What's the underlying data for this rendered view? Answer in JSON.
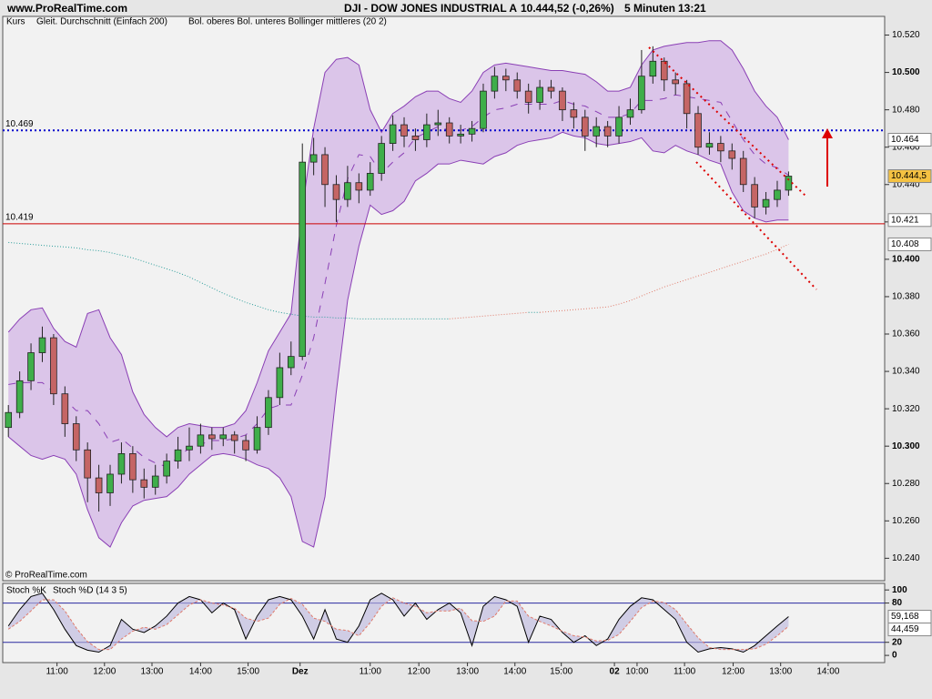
{
  "header": {
    "site": "www.ProRealTime.com",
    "title": "DJI - DOW JONES INDUSTRIAL A",
    "quote": "10.444,52 (-0,26%)",
    "interval": "5 Minuten",
    "time": "13:21"
  },
  "copyright": "© ProRealTime.com",
  "chart_data": [
    {
      "type": "candlestick",
      "xlim": [
        0,
        78
      ],
      "ylim": [
        10228,
        10530
      ],
      "yticks": [
        {
          "value": 10520,
          "label": "10.520"
        },
        {
          "value": 10500,
          "label": "10.500"
        },
        {
          "value": 10480,
          "label": "10.480"
        },
        {
          "value": 10460,
          "label": "10.460"
        },
        {
          "value": 10440,
          "label": "10.440"
        },
        {
          "value": 10420,
          "label": "10.420"
        },
        {
          "value": 10400,
          "label": "10.400"
        },
        {
          "value": 10380,
          "label": "10.380"
        },
        {
          "value": 10360,
          "label": "10.360"
        },
        {
          "value": 10340,
          "label": "10.340"
        },
        {
          "value": 10320,
          "label": "10.320"
        },
        {
          "value": 10300,
          "label": "10.300"
        },
        {
          "value": 10280,
          "label": "10.280"
        },
        {
          "value": 10260,
          "label": "10.260"
        },
        {
          "value": 10240,
          "label": "10.240"
        }
      ],
      "candles": {
        "name": "Kurs",
        "up_color": "#3fae4a",
        "down_color": "#c56565",
        "last_label": "10.444,5",
        "ohlc": [
          [
            10310,
            10322,
            10305,
            10318
          ],
          [
            10318,
            10340,
            10315,
            10335
          ],
          [
            10335,
            10355,
            10330,
            10350
          ],
          [
            10350,
            10364,
            10345,
            10358
          ],
          [
            10358,
            10360,
            10322,
            10328
          ],
          [
            10328,
            10332,
            10305,
            10312
          ],
          [
            10312,
            10316,
            10292,
            10298
          ],
          [
            10298,
            10302,
            10270,
            10283
          ],
          [
            10283,
            10290,
            10265,
            10275
          ],
          [
            10275,
            10290,
            10268,
            10285
          ],
          [
            10285,
            10302,
            10280,
            10296
          ],
          [
            10296,
            10300,
            10275,
            10282
          ],
          [
            10282,
            10288,
            10272,
            10278
          ],
          [
            10278,
            10290,
            10274,
            10284
          ],
          [
            10284,
            10296,
            10280,
            10292
          ],
          [
            10292,
            10305,
            10288,
            10298
          ],
          [
            10298,
            10310,
            10292,
            10300
          ],
          [
            10300,
            10312,
            10296,
            10306
          ],
          [
            10306,
            10310,
            10298,
            10304
          ],
          [
            10304,
            10310,
            10300,
            10306
          ],
          [
            10306,
            10308,
            10296,
            10303
          ],
          [
            10303,
            10306,
            10292,
            10298
          ],
          [
            10298,
            10316,
            10296,
            10310
          ],
          [
            10310,
            10330,
            10306,
            10326
          ],
          [
            10326,
            10350,
            10322,
            10342
          ],
          [
            10342,
            10356,
            10338,
            10348
          ],
          [
            10348,
            10462,
            10346,
            10452
          ],
          [
            10452,
            10465,
            10445,
            10456
          ],
          [
            10456,
            10460,
            10428,
            10440
          ],
          [
            10440,
            10445,
            10420,
            10432
          ],
          [
            10432,
            10450,
            10428,
            10441
          ],
          [
            10441,
            10446,
            10430,
            10437
          ],
          [
            10437,
            10452,
            10434,
            10446
          ],
          [
            10446,
            10466,
            10442,
            10462
          ],
          [
            10462,
            10477,
            10458,
            10472
          ],
          [
            10472,
            10476,
            10460,
            10466
          ],
          [
            10466,
            10470,
            10458,
            10464
          ],
          [
            10464,
            10478,
            10460,
            10472
          ],
          [
            10472,
            10480,
            10466,
            10473
          ],
          [
            10473,
            10476,
            10462,
            10466
          ],
          [
            10466,
            10472,
            10462,
            10467
          ],
          [
            10467,
            10474,
            10463,
            10470
          ],
          [
            10470,
            10494,
            10468,
            10490
          ],
          [
            10490,
            10503,
            10486,
            10498
          ],
          [
            10498,
            10502,
            10490,
            10496
          ],
          [
            10496,
            10500,
            10486,
            10490
          ],
          [
            10490,
            10494,
            10478,
            10484
          ],
          [
            10484,
            10496,
            10480,
            10492
          ],
          [
            10492,
            10496,
            10486,
            10490
          ],
          [
            10490,
            10492,
            10474,
            10480
          ],
          [
            10480,
            10484,
            10470,
            10476
          ],
          [
            10476,
            10480,
            10458,
            10466
          ],
          [
            10466,
            10476,
            10460,
            10471
          ],
          [
            10471,
            10474,
            10460,
            10466
          ],
          [
            10466,
            10482,
            10462,
            10476
          ],
          [
            10476,
            10486,
            10472,
            10480
          ],
          [
            10480,
            10512,
            10478,
            10498
          ],
          [
            10498,
            10514,
            10494,
            10506
          ],
          [
            10506,
            10508,
            10490,
            10496
          ],
          [
            10496,
            10500,
            10488,
            10494
          ],
          [
            10494,
            10496,
            10470,
            10478
          ],
          [
            10478,
            10482,
            10456,
            10460
          ],
          [
            10460,
            10468,
            10456,
            10462
          ],
          [
            10462,
            10466,
            10452,
            10458
          ],
          [
            10458,
            10462,
            10448,
            10454
          ],
          [
            10454,
            10458,
            10436,
            10440
          ],
          [
            10440,
            10444,
            10422,
            10428
          ],
          [
            10428,
            10436,
            10424,
            10432
          ],
          [
            10432,
            10442,
            10428,
            10437
          ],
          [
            10437,
            10447,
            10434,
            10444.5
          ]
        ]
      },
      "moving_average": {
        "name": "Gleit. Durchschnitt (Einfach 200)",
        "falling_color": "#2a9d9a",
        "rising_color": "#e07a6a",
        "last_label": "10.408",
        "values": [
          10409,
          10408.5,
          10408,
          10407.5,
          10407,
          10406.6,
          10406.1,
          10405.1,
          10404.6,
          10403.6,
          10402.2,
          10400.7,
          10398.8,
          10396.8,
          10394.9,
          10392.9,
          10390.5,
          10387.6,
          10384.7,
          10381.8,
          10379.3,
          10376.9,
          10375,
          10373,
          10371.6,
          10370.6,
          10369.6,
          10369.1,
          10369.1,
          10368.6,
          10368.6,
          10368.1,
          10368.1,
          10368.1,
          10368.1,
          10368.1,
          10368.1,
          10368.1,
          10368.1,
          10368.1,
          10368.6,
          10369.1,
          10369.6,
          10370.1,
          10370.6,
          10371.1,
          10371.6,
          10371.6,
          10372.1,
          10372.5,
          10373,
          10373.5,
          10374,
          10374.5,
          10376,
          10377.9,
          10380.4,
          10382.8,
          10385.2,
          10387.2,
          10389.1,
          10391.1,
          10393,
          10395,
          10397,
          10398.9,
          10400.9,
          10402.8,
          10405.3,
          10408
        ]
      },
      "bollinger": {
        "name": "Bol. oberes Bol. unteres Bollinger mittleres (20 2)",
        "color": "#8a3fb5",
        "fill": "#d7bde8",
        "upper_last_label": "10.464",
        "lower_last_label": "10.421",
        "upper": [
          10361,
          10368,
          10373,
          10374,
          10363,
          10356,
          10353,
          10371,
          10373,
          10358,
          10349,
          10329,
          10317,
          10310,
          10305,
          10310,
          10312,
          10311,
          10310,
          10310,
          10312,
          10319,
          10334,
          10351,
          10361,
          10371,
          10427,
          10470,
          10500,
          10507,
          10508,
          10504,
          10480,
          10468,
          10478,
          10482,
          10487,
          10490,
          10490,
          10486,
          10484,
          10490,
          10500,
          10504,
          10505,
          10504,
          10503,
          10502,
          10501,
          10501,
          10500,
          10499,
          10495,
          10490,
          10490,
          10492,
          10504,
          10512,
          10514,
          10515,
          10516,
          10516,
          10517,
          10517,
          10512,
          10502,
          10490,
          10482,
          10476,
          10464
        ],
        "lower": [
          10305,
          10300,
          10295,
          10293,
          10295,
          10293,
          10285,
          10266,
          10251,
          10246,
          10259,
          10268,
          10271,
          10272,
          10273,
          10278,
          10285,
          10290,
          10295,
          10296,
          10295,
          10293,
          10290,
          10288,
          10283,
          10273,
          10249,
          10246,
          10273,
          10329,
          10378,
          10407,
          10429,
          10424,
          10426,
          10431,
          10442,
          10446,
          10451,
          10451,
          10453,
          10452,
          10451,
          10455,
          10457,
          10461,
          10463,
          10464,
          10465,
          10468,
          10466,
          10465,
          10462,
          10461,
          10462,
          10463,
          10465,
          10458,
          10457,
          10461,
          10458,
          10456,
          10453,
          10451,
          10436,
          10426,
          10422,
          10420,
          10421,
          10421
        ],
        "middle": [
          10333,
          10334,
          10334,
          10334,
          10329,
          10325,
          10319,
          10319,
          10312,
          10302,
          10304,
          10299,
          10294,
          10291,
          10289,
          10294,
          10299,
          10301,
          10303,
          10303,
          10304,
          10306,
          10312,
          10320,
          10322,
          10322,
          10338,
          10358,
          10387,
          10418,
          10443,
          10456,
          10455,
          10446,
          10452,
          10457,
          10465,
          10468,
          10471,
          10469,
          10469,
          10471,
          10476,
          10480,
          10481,
          10483,
          10483,
          10483,
          10483,
          10485,
          10483,
          10482,
          10479,
          10476,
          10476,
          10478,
          10485,
          10485,
          10486,
          10488,
          10487,
          10486,
          10485,
          10484,
          10474,
          10464,
          10456,
          10451,
          10449,
          10445
        ]
      },
      "levels": [
        {
          "value": 10469,
          "label": "10.469",
          "color": "#0000cc",
          "dash": "2,3"
        },
        {
          "value": 10419,
          "label": "10.419",
          "color": "#cc0000",
          "dash": "none"
        }
      ]
    },
    {
      "type": "stochastic",
      "xlim": [
        0,
        78
      ],
      "ylim": [
        -11,
        110
      ],
      "yticks": [
        100,
        80,
        20,
        0
      ],
      "levels": [
        80,
        20
      ],
      "level_color": "#2a2aa0",
      "xticks": [
        {
          "value": 4.8,
          "label": "11:00"
        },
        {
          "value": 9.0,
          "label": "12:00"
        },
        {
          "value": 13.2,
          "label": "13:00"
        },
        {
          "value": 17.5,
          "label": "14:00"
        },
        {
          "value": 21.7,
          "label": "15:00"
        },
        {
          "value": 26.3,
          "label": "Dez"
        },
        {
          "value": 32.5,
          "label": "11:00"
        },
        {
          "value": 36.8,
          "label": "12:00"
        },
        {
          "value": 41.1,
          "label": "13:00"
        },
        {
          "value": 45.3,
          "label": "14:00"
        },
        {
          "value": 49.4,
          "label": "15:00"
        },
        {
          "value": 54.1,
          "label": "02"
        },
        {
          "value": 56.1,
          "label": "10:00"
        },
        {
          "value": 60.3,
          "label": "11:00"
        },
        {
          "value": 64.6,
          "label": "12:00"
        },
        {
          "value": 68.8,
          "label": "13:00"
        },
        {
          "value": 73.0,
          "label": "14:00"
        }
      ],
      "series": [
        {
          "name": "Stoch %K",
          "color": "#000000",
          "last_label": "59,168",
          "values": [
            45,
            70,
            90,
            95,
            70,
            40,
            15,
            8,
            5,
            15,
            55,
            40,
            35,
            45,
            60,
            80,
            90,
            85,
            65,
            80,
            70,
            25,
            60,
            85,
            90,
            85,
            60,
            25,
            70,
            25,
            20,
            45,
            85,
            95,
            85,
            60,
            80,
            55,
            70,
            80,
            65,
            15,
            75,
            90,
            85,
            75,
            20,
            60,
            55,
            35,
            20,
            30,
            15,
            25,
            55,
            75,
            88,
            85,
            70,
            55,
            20,
            5,
            10,
            12,
            10,
            5,
            15,
            30,
            45,
            59.168
          ]
        },
        {
          "name": "Stoch %D (14 3 5)",
          "color": "#e07a6a",
          "last_label": "44,459",
          "values": [
            40,
            52,
            68,
            85,
            85,
            68,
            42,
            21,
            9,
            9,
            25,
            37,
            43,
            40,
            47,
            62,
            77,
            85,
            80,
            77,
            72,
            57,
            52,
            57,
            78,
            87,
            78,
            57,
            52,
            40,
            38,
            30,
            50,
            75,
            88,
            80,
            75,
            65,
            68,
            68,
            72,
            53,
            52,
            60,
            83,
            83,
            60,
            52,
            45,
            37,
            30,
            28,
            22,
            23,
            32,
            52,
            73,
            83,
            81,
            70,
            48,
            27,
            12,
            9,
            9,
            9,
            10,
            17,
            30,
            44.459
          ]
        }
      ]
    }
  ]
}
